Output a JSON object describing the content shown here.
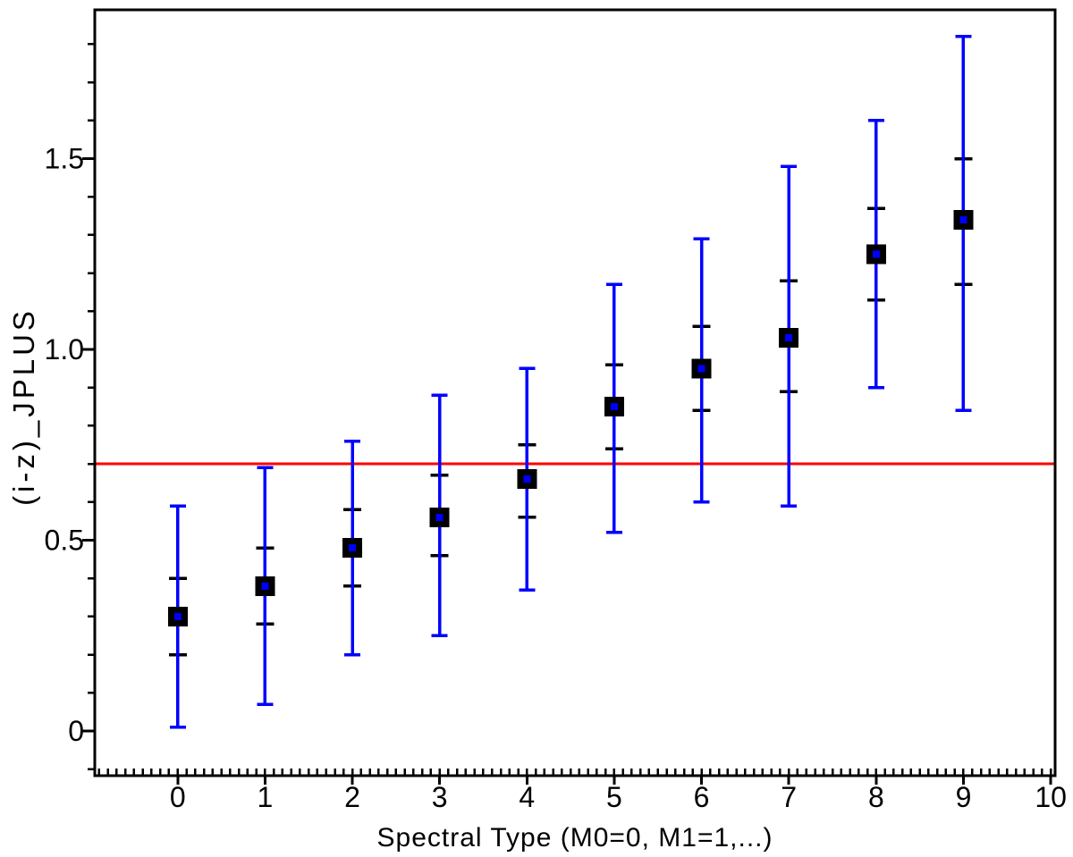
{
  "page": {
    "background_color": "#ffffff"
  },
  "chart_data": {
    "type": "scatter",
    "title": "",
    "xlabel": "Spectral Type (M0=0, M1=1,...)",
    "ylabel": "(i-z)_JPLUS",
    "xlim": [
      -0.95,
      10.05
    ],
    "ylim": [
      -0.117,
      1.89
    ],
    "grid": false,
    "legend": null,
    "x_major_ticks": [
      0,
      1,
      2,
      3,
      4,
      5,
      6,
      7,
      8,
      9,
      10
    ],
    "x_tick_labels": [
      "0",
      "1",
      "2",
      "3",
      "4",
      "5",
      "6",
      "7",
      "8",
      "9",
      "10"
    ],
    "x_minor_step": 0.1,
    "y_major_ticks": [
      0,
      0.5,
      1.0,
      1.5
    ],
    "y_tick_labels": [
      "0",
      "0.5",
      "1.0",
      "1.5"
    ],
    "y_minor_step": 0.1,
    "reference_line": {
      "orientation": "horizontal",
      "y": 0.7,
      "color": "#ff0000"
    },
    "colors": {
      "marker": "#000000",
      "marker_center": "#0000ff",
      "outer_errorbar": "#0000ff",
      "inner_errorbar": "#000000",
      "axis": "#000000",
      "tick_label": "#000000"
    },
    "series": [
      {
        "marker": "filled-square-with-blue-center",
        "points": [
          {
            "x": 0,
            "y": 0.3,
            "inner_lo": 0.2,
            "inner_hi": 0.4,
            "outer_lo": 0.01,
            "outer_hi": 0.59
          },
          {
            "x": 1,
            "y": 0.38,
            "inner_lo": 0.28,
            "inner_hi": 0.48,
            "outer_lo": 0.07,
            "outer_hi": 0.69
          },
          {
            "x": 2,
            "y": 0.48,
            "inner_lo": 0.38,
            "inner_hi": 0.58,
            "outer_lo": 0.2,
            "outer_hi": 0.76
          },
          {
            "x": 3,
            "y": 0.56,
            "inner_lo": 0.46,
            "inner_hi": 0.67,
            "outer_lo": 0.25,
            "outer_hi": 0.88
          },
          {
            "x": 4,
            "y": 0.66,
            "inner_lo": 0.56,
            "inner_hi": 0.75,
            "outer_lo": 0.37,
            "outer_hi": 0.95
          },
          {
            "x": 5,
            "y": 0.85,
            "inner_lo": 0.74,
            "inner_hi": 0.96,
            "outer_lo": 0.52,
            "outer_hi": 1.17
          },
          {
            "x": 6,
            "y": 0.95,
            "inner_lo": 0.84,
            "inner_hi": 1.06,
            "outer_lo": 0.6,
            "outer_hi": 1.29
          },
          {
            "x": 7,
            "y": 1.03,
            "inner_lo": 0.89,
            "inner_hi": 1.18,
            "outer_lo": 0.59,
            "outer_hi": 1.48
          },
          {
            "x": 8,
            "y": 1.25,
            "inner_lo": 1.13,
            "inner_hi": 1.37,
            "outer_lo": 0.9,
            "outer_hi": 1.6
          },
          {
            "x": 9,
            "y": 1.34,
            "inner_lo": 1.17,
            "inner_hi": 1.5,
            "outer_lo": 0.84,
            "outer_hi": 1.82
          }
        ]
      }
    ]
  }
}
